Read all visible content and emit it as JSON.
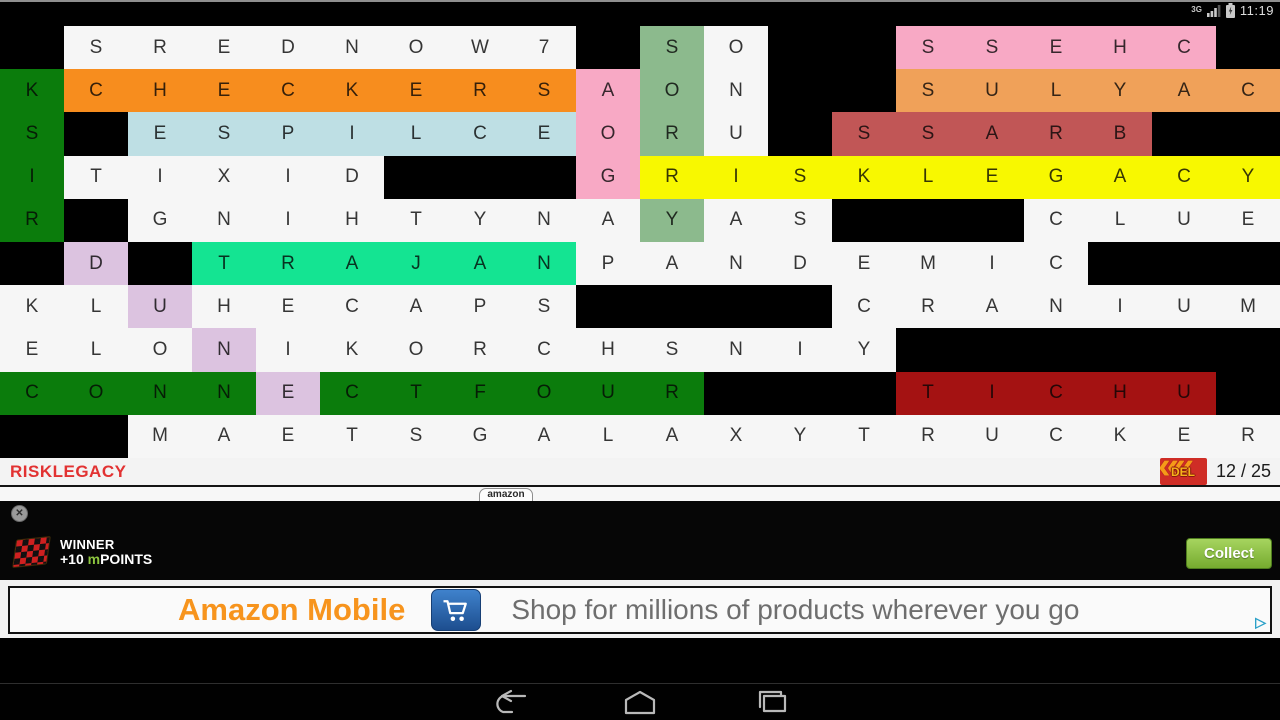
{
  "status_bar": {
    "network": "3G",
    "time": "11:19"
  },
  "grid": {
    "cols": 20,
    "rows": 10,
    "palette": {
      ".": "#000000",
      "w": "#f6f6f6",
      "g": "#0b7c0c",
      "s": "#8cba8d",
      "p": "#f8a9c5",
      "o": "#f78d1e",
      "l": "#f0a159",
      "b": "#bedfe4",
      "r": "#c15656",
      "y": "#f8f800",
      "m": "#14e492",
      "u": "#dcc3e0",
      "d": "#a41212"
    },
    "letters": [
      " SREDNOW7 SO  SSEHC ",
      "KCHECKERSAON  SULYAC",
      "S ESPILCEORU SSARB  ",
      "ITIXID   GRISKLEGACY",
      "R GNIHTYNAYAS   CLUE",
      " D TRAJANPANDEMIC   ",
      "KLUHECAPS    CRANIUM",
      "ELONIKORCHSNIY      ",
      "CONNECTFOUR   TICHU ",
      "  MAETSGALAXYTRUCKER"
    ],
    "colors": [
      ".wwwwwwww.sw..ppppp.",
      "goooooooopsw..llllll",
      "g.bbbbbbbpsw.rrrrr..",
      "gwwwww...pyyyyyyyyyy",
      "g.wwwwwwwwsww...wwww",
      ".u.mmmmmmwwwwwwww...",
      "wwuwwwwww....wwwwwww",
      "wwwuwwwwwwwwww......",
      "ggggugggggg...ddddd.",
      "..wwwwwwwwwwwwwwwwww"
    ]
  },
  "found_bar": {
    "word": "RISKLEGACY",
    "del_label": "DEL",
    "counter": "12 / 25"
  },
  "ad": {
    "pill": "amazon",
    "winner_title": "WINNER",
    "points_plus": "+10 ",
    "points_m": "m",
    "points_suffix": "POINTS",
    "collect_label": "Collect",
    "title": "Amazon Mobile",
    "tagline": "Shop for millions of products wherever you go"
  },
  "glyphs": {
    "close": "✕",
    "del_chevrons": "««",
    "adchoices": "▷"
  },
  "accent_colors": {
    "found_word_red": "#e23232",
    "mpoints_green": "#8dc63f",
    "amazon_orange": "#f7941d",
    "collect_green": "#76ab2f"
  }
}
